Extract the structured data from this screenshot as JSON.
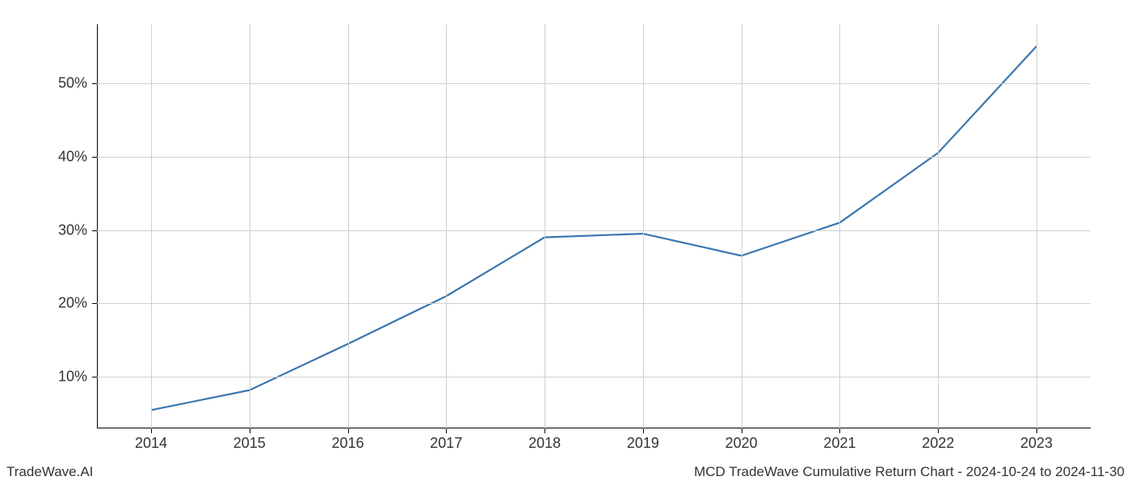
{
  "chart": {
    "type": "line",
    "x_values": [
      2014,
      2015,
      2016,
      2017,
      2018,
      2019,
      2020,
      2021,
      2022,
      2023
    ],
    "y_values": [
      5.5,
      8.2,
      14.5,
      21.0,
      29.0,
      29.5,
      26.5,
      31.0,
      40.5,
      55.0
    ],
    "line_color": "#3a76af",
    "line_width": 2.2,
    "background_color": "#ffffff",
    "grid_color": "#d0d0d0",
    "axis_color": "#000000",
    "xlim": [
      2013.45,
      2023.55
    ],
    "ylim": [
      3,
      58
    ],
    "x_ticks": [
      2014,
      2015,
      2016,
      2017,
      2018,
      2019,
      2020,
      2021,
      2022,
      2023
    ],
    "x_tick_labels": [
      "2014",
      "2015",
      "2016",
      "2017",
      "2018",
      "2019",
      "2020",
      "2021",
      "2022",
      "2023"
    ],
    "y_ticks": [
      10,
      20,
      30,
      40,
      50
    ],
    "y_tick_labels": [
      "10%",
      "20%",
      "30%",
      "40%",
      "50%"
    ],
    "tick_label_fontsize": 18,
    "tick_label_color": "#333333"
  },
  "footer": {
    "left": "TradeWave.AI",
    "right": "MCD TradeWave Cumulative Return Chart - 2024-10-24 to 2024-11-30",
    "fontsize": 17,
    "color": "#333333"
  }
}
